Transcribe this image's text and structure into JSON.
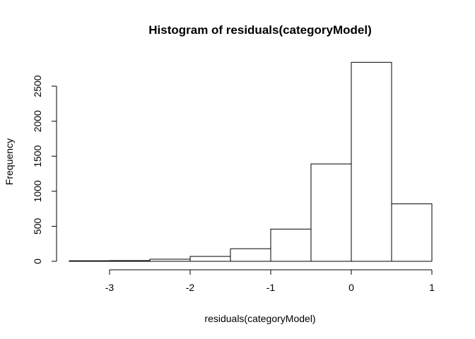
{
  "chart_data": {
    "type": "bar",
    "title": "Histogram of residuals(categoryModel)",
    "xlabel": "residuals(categoryModel)",
    "ylabel": "Frequency",
    "bins": [
      {
        "start": -3.5,
        "end": -3.0,
        "count": 8
      },
      {
        "start": -3.0,
        "end": -2.5,
        "count": 10
      },
      {
        "start": -2.5,
        "end": -2.0,
        "count": 30
      },
      {
        "start": -2.0,
        "end": -1.5,
        "count": 70
      },
      {
        "start": -1.5,
        "end": -1.0,
        "count": 180
      },
      {
        "start": -1.0,
        "end": -0.5,
        "count": 460
      },
      {
        "start": -0.5,
        "end": 0.0,
        "count": 1390
      },
      {
        "start": 0.0,
        "end": 0.5,
        "count": 2840
      },
      {
        "start": 0.5,
        "end": 1.0,
        "count": 820
      }
    ],
    "xlim": [
      -3.5,
      1.0
    ],
    "ylim": [
      0,
      2850
    ],
    "x_ticks": [
      -3,
      -2,
      -1,
      0,
      1
    ],
    "y_ticks": [
      0,
      500,
      1000,
      1500,
      2000,
      2500
    ],
    "grid": false,
    "legend": "none",
    "bar_fill": "#ffffff",
    "bar_stroke": "#000000"
  }
}
